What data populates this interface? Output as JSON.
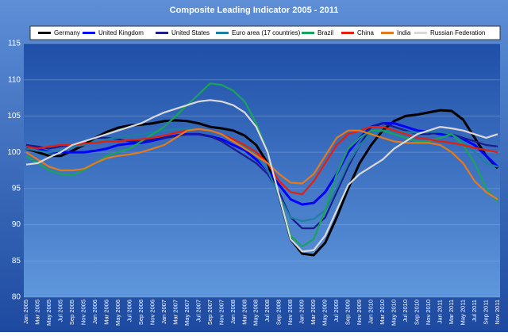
{
  "chart_data": {
    "type": "line",
    "title": "Composite Leading Indicator 2005 - 2011",
    "categories": [
      "Jan 2005",
      "Mar 2005",
      "May 2005",
      "Jul 2005",
      "Sep 2005",
      "Nov 2005",
      "Jan 2006",
      "Mar 2006",
      "May 2006",
      "Jul 2006",
      "Sep 2006",
      "Nov 2006",
      "Jan 2007",
      "Mar 2007",
      "May 2007",
      "Jul 2007",
      "Sep 2007",
      "Nov 2007",
      "Jan 2008",
      "Mar 2008",
      "May 2008",
      "Jul 2008",
      "Sep 2008",
      "Nov 2008",
      "Jan 2009",
      "Mar 2009",
      "May 2009",
      "Jul 2009",
      "Sep 2009",
      "Nov 2009",
      "Jan 2010",
      "Mar 2010",
      "May 2010",
      "Jul 2010",
      "Sep 2010",
      "Nov 2010",
      "Jan 2011",
      "Mar 2011",
      "May 2011",
      "Jul 2011",
      "Sep 2011",
      "Nov 2011"
    ],
    "series": [
      {
        "name": "Germany",
        "color": "#000000",
        "values": [
          100.5,
          100,
          99.5,
          99.5,
          100.2,
          101,
          102,
          102.8,
          103.4,
          103.7,
          103.8,
          104,
          104.3,
          104.4,
          104.3,
          104,
          103.5,
          103.3,
          103,
          102.3,
          101,
          98.5,
          94,
          88,
          86,
          85.8,
          87.5,
          91,
          95,
          98.5,
          101,
          103,
          104.3,
          105,
          105.2,
          105.5,
          105.8,
          105.7,
          104.5,
          102,
          99.5,
          97.8
        ]
      },
      {
        "name": "United Kingdom",
        "color": "#0000ff",
        "values": [
          101,
          100.5,
          100,
          100,
          100,
          100,
          100.2,
          100.5,
          101,
          101.2,
          101.3,
          101.6,
          102,
          102.3,
          102.5,
          102.5,
          102.2,
          101.8,
          101,
          100.3,
          99,
          97.5,
          95.5,
          93.5,
          92.8,
          93,
          94.5,
          97,
          100,
          102,
          103.5,
          104,
          104,
          103.5,
          103,
          102.8,
          102.5,
          102.3,
          101.8,
          101,
          99.5,
          98
        ]
      },
      {
        "name": "United States",
        "color": "#1c1c8a",
        "values": [
          101,
          100.8,
          100.5,
          100.8,
          101,
          101.5,
          102,
          102,
          101.8,
          101.5,
          101.5,
          101.8,
          102,
          102.2,
          102.5,
          102.5,
          102.2,
          101.5,
          100.5,
          99.5,
          98.5,
          97,
          94.5,
          91,
          89.5,
          89.5,
          91,
          94.5,
          98,
          101,
          103.5,
          104,
          103.5,
          103,
          102.5,
          102.5,
          102.8,
          102.5,
          102,
          101.5,
          101,
          100.8
        ]
      },
      {
        "name": "Euro area (17 countries)",
        "color": "#1f7fa0",
        "values": [
          100.5,
          100.2,
          100,
          100.2,
          100.7,
          101,
          101.5,
          101.8,
          102,
          102.3,
          102.5,
          102.8,
          103,
          103.2,
          103.3,
          103.3,
          103,
          102.5,
          101.8,
          100.8,
          99.5,
          97.5,
          94,
          91,
          90.5,
          90.8,
          92,
          95,
          98.5,
          101,
          102.5,
          103,
          103,
          102.8,
          102.7,
          102.8,
          102.8,
          102.5,
          101.5,
          100,
          98.5,
          98
        ]
      },
      {
        "name": "Brazil",
        "color": "#19a35a",
        "values": [
          99.5,
          98.5,
          97.5,
          97,
          96.8,
          97.5,
          98.5,
          99.5,
          100,
          100.5,
          101.5,
          102.5,
          103.5,
          105,
          106.5,
          108,
          109.5,
          109.3,
          108.5,
          107,
          104,
          100,
          94,
          88.5,
          87,
          88,
          92,
          97,
          100.5,
          102,
          103,
          103,
          102.5,
          102,
          101.5,
          101.5,
          102,
          102.5,
          101,
          98.5,
          95,
          93.2
        ]
      },
      {
        "name": "China",
        "color": "#e3200e",
        "values": [
          100.8,
          100.5,
          100.8,
          101,
          101,
          101.2,
          101.3,
          101.5,
          101.5,
          101.7,
          101.8,
          102,
          102.3,
          102.7,
          103,
          103.2,
          103,
          102.5,
          101.8,
          101,
          100,
          98.5,
          96,
          94.5,
          94.2,
          96,
          98.5,
          101,
          102.5,
          103,
          103.5,
          103.5,
          103,
          102.5,
          102,
          101.8,
          101.5,
          101.3,
          101,
          100.6,
          100.3,
          100
        ]
      },
      {
        "name": "India",
        "color": "#e47a1c",
        "values": [
          100,
          99,
          98,
          97.5,
          97.5,
          97.7,
          98.5,
          99.2,
          99.5,
          99.7,
          100,
          100.5,
          101,
          102,
          103,
          103.2,
          103,
          102.5,
          101.5,
          100.5,
          99.5,
          98.5,
          97,
          95.8,
          95.7,
          97,
          99.5,
          102,
          103,
          103,
          102.5,
          102,
          101.5,
          101.3,
          101.3,
          101.3,
          101,
          100,
          98.5,
          96,
          94.5,
          93.5
        ]
      },
      {
        "name": "Russian Federation",
        "color": "#d9d9d9",
        "values": [
          98.3,
          98.5,
          99.3,
          100,
          101,
          101.5,
          102,
          102.5,
          103,
          103.5,
          104,
          104.8,
          105.5,
          106,
          106.5,
          107,
          107.2,
          107,
          106.5,
          105.5,
          103.5,
          100,
          94,
          88,
          86.3,
          86.5,
          88.5,
          92,
          95.5,
          97,
          98,
          99,
          100.5,
          101.5,
          102.5,
          103,
          103.5,
          103.3,
          103,
          102.5,
          102,
          102.5
        ]
      }
    ],
    "ylim": [
      80,
      115
    ],
    "yticks": [
      80,
      85,
      90,
      95,
      100,
      105,
      110,
      115
    ],
    "grid": true
  }
}
